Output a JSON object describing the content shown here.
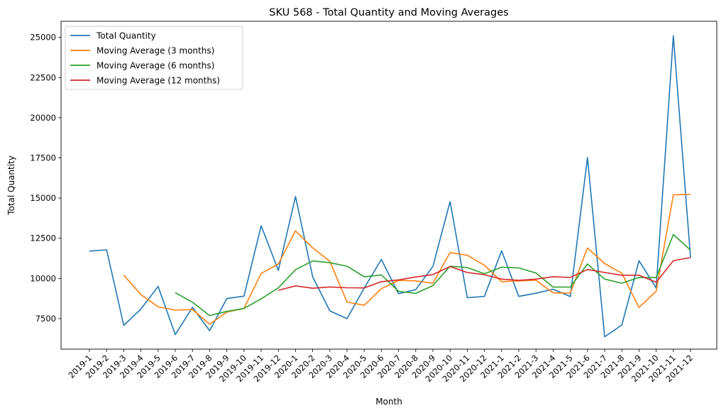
{
  "chart_data": {
    "type": "line",
    "title": "SKU 568 - Total Quantity and Moving Averages",
    "xlabel": "Month",
    "ylabel": "Total Quantity",
    "ylim": [
      5600,
      26000
    ],
    "yticks": [
      7500,
      10000,
      12500,
      15000,
      17500,
      20000,
      22500,
      25000
    ],
    "grid": false,
    "legend_position": "top-left",
    "categories": [
      "2019-1",
      "2019-2",
      "2019-3",
      "2019-4",
      "2019-5",
      "2019-6",
      "2019-7",
      "2019-8",
      "2019-9",
      "2019-10",
      "2019-11",
      "2019-12",
      "2020-1",
      "2020-2",
      "2020-3",
      "2020-4",
      "2020-5",
      "2020-6",
      "2020-7",
      "2020-8",
      "2020-9",
      "2020-10",
      "2020-11",
      "2020-12",
      "2021-1",
      "2021-2",
      "2021-3",
      "2021-4",
      "2021-5",
      "2021-6",
      "2021-7",
      "2021-8",
      "2021-9",
      "2021-10",
      "2021-11",
      "2021-12"
    ],
    "series": [
      {
        "name": "Total Quantity",
        "color": "#1f77b4",
        "values": [
          11700,
          11780,
          7080,
          8100,
          9500,
          6500,
          8200,
          6750,
          8750,
          8900,
          13280,
          10500,
          15100,
          10100,
          7980,
          7500,
          9400,
          11180,
          9050,
          9300,
          10750,
          14780,
          8800,
          8880,
          11720,
          8880,
          9080,
          9330,
          8870,
          17520,
          6370,
          7100,
          11100,
          9400,
          25100,
          11300
        ]
      },
      {
        "name": "Moving Average (3 months)",
        "color": "#ff7f0e",
        "values": [
          null,
          null,
          10200,
          8990,
          8230,
          8030,
          8070,
          7150,
          7900,
          8130,
          10310,
          10900,
          12960,
          11900,
          11060,
          8530,
          8330,
          9360,
          9880,
          9850,
          9700,
          11610,
          11440,
          10820,
          9800,
          9850,
          9890,
          9100,
          9090,
          11900,
          10920,
          10330,
          8190,
          9200,
          15200,
          15230
        ]
      },
      {
        "name": "Moving Average (6 months)",
        "color": "#2ca02c",
        "values": [
          null,
          null,
          null,
          null,
          null,
          9110,
          8520,
          7690,
          7950,
          8130,
          8730,
          9410,
          10540,
          11090,
          10980,
          10760,
          10100,
          10220,
          9200,
          9070,
          9550,
          10760,
          10680,
          10290,
          10700,
          10650,
          10340,
          9460,
          9470,
          10900,
          9960,
          9700,
          10060,
          10050,
          12730,
          11760
        ]
      },
      {
        "name": "Moving Average (12 months)",
        "color": "#d62728",
        "values": [
          null,
          null,
          null,
          null,
          null,
          null,
          null,
          null,
          null,
          null,
          null,
          9260,
          9540,
          9390,
          9470,
          9420,
          9410,
          9800,
          9910,
          10090,
          10240,
          10740,
          10370,
          10230,
          9960,
          9880,
          9960,
          10110,
          10060,
          10560,
          10370,
          10200,
          10200,
          9760,
          11100,
          11300
        ]
      }
    ]
  }
}
